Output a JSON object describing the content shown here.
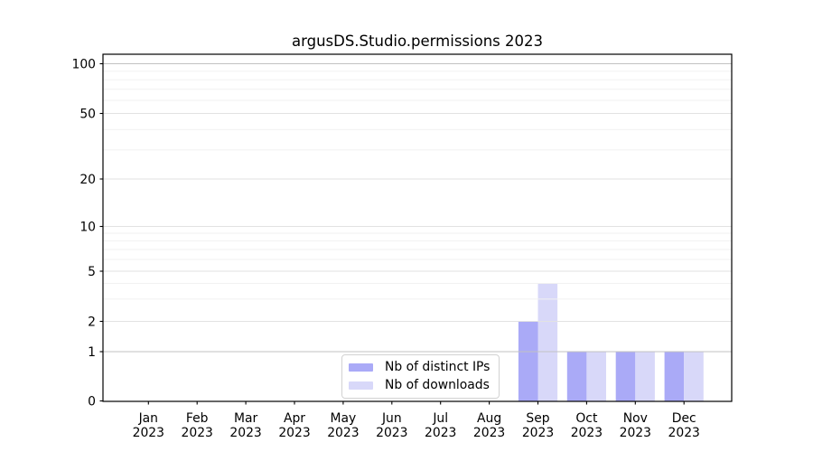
{
  "chart_data": {
    "type": "bar",
    "title": "argusDS.Studio.permissions 2023",
    "categories": [
      "Jan",
      "Feb",
      "Mar",
      "Apr",
      "May",
      "Jun",
      "Jul",
      "Aug",
      "Sep",
      "Oct",
      "Nov",
      "Dec"
    ],
    "xtick_year": "2023",
    "series": [
      {
        "name": "Nb of distinct IPs",
        "color": "#aaaaf7",
        "values": [
          0,
          0,
          0,
          0,
          0,
          0,
          0,
          0,
          2,
          1,
          1,
          1
        ]
      },
      {
        "name": "Nb of downloads",
        "color": "#d8d8f9",
        "values": [
          0,
          0,
          0,
          0,
          0,
          0,
          0,
          0,
          4,
          1,
          1,
          1
        ]
      }
    ],
    "yscale": "symlog",
    "ylim": [
      0,
      115
    ],
    "yticks": [
      0,
      1,
      2,
      5,
      10,
      20,
      50,
      100
    ],
    "minor_yticks": [
      3,
      4,
      6,
      7,
      8,
      9,
      30,
      40,
      60,
      70,
      80,
      90
    ],
    "grid": true,
    "legend_position": "inside-bottom-center",
    "colors": {
      "grid_major_strong": "#c2c2c2",
      "grid_major": "#e2e2e2",
      "grid_minor": "#f1f1f1",
      "spine": "#000000"
    }
  }
}
